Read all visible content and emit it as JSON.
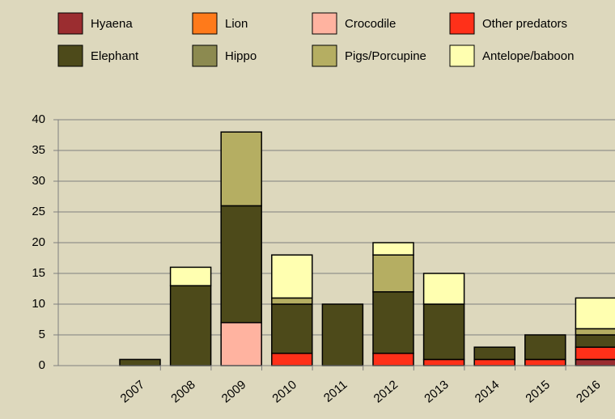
{
  "chart_data": {
    "type": "stacked_bar",
    "categories": [
      "2007",
      "2008",
      "2009",
      "2010",
      "2011",
      "2012",
      "2013",
      "2014",
      "2015",
      "2016"
    ],
    "series": [
      {
        "name": "Hyaena",
        "color": "#9b2d30",
        "values": [
          0,
          0,
          0,
          0,
          0,
          0,
          0,
          0,
          0,
          1
        ]
      },
      {
        "name": "Lion",
        "color": "#ff7a1a",
        "values": [
          0,
          0,
          0,
          0,
          0,
          0,
          0,
          0,
          0,
          0
        ]
      },
      {
        "name": "Crocodile",
        "color": "#ffb3a0",
        "values": [
          0,
          0,
          7,
          0,
          0,
          0,
          0,
          0,
          0,
          0
        ]
      },
      {
        "name": "Other predators",
        "color": "#ff3019",
        "values": [
          0,
          0,
          0,
          2,
          0,
          2,
          1,
          1,
          1,
          2
        ]
      },
      {
        "name": "Elephant",
        "color": "#4d4a1a",
        "values": [
          1,
          13,
          19,
          8,
          10,
          10,
          9,
          2,
          4,
          2
        ]
      },
      {
        "name": "Hippo",
        "color": "#8c8a50",
        "values": [
          0,
          0,
          0,
          0,
          0,
          0,
          0,
          0,
          0,
          0
        ]
      },
      {
        "name": "Pigs/Porcupine",
        "color": "#b5ae62",
        "values": [
          0,
          0,
          12,
          1,
          0,
          6,
          0,
          0,
          0,
          1
        ]
      },
      {
        "name": "Antelope/baboon",
        "color": "#ffffb0",
        "values": [
          0,
          3,
          0,
          7,
          0,
          2,
          5,
          0,
          0,
          5
        ]
      }
    ],
    "ylim": [
      0,
      40
    ],
    "yticks": [
      0,
      5,
      10,
      15,
      20,
      25,
      30,
      35,
      40
    ],
    "grid": true,
    "legend": "top"
  }
}
